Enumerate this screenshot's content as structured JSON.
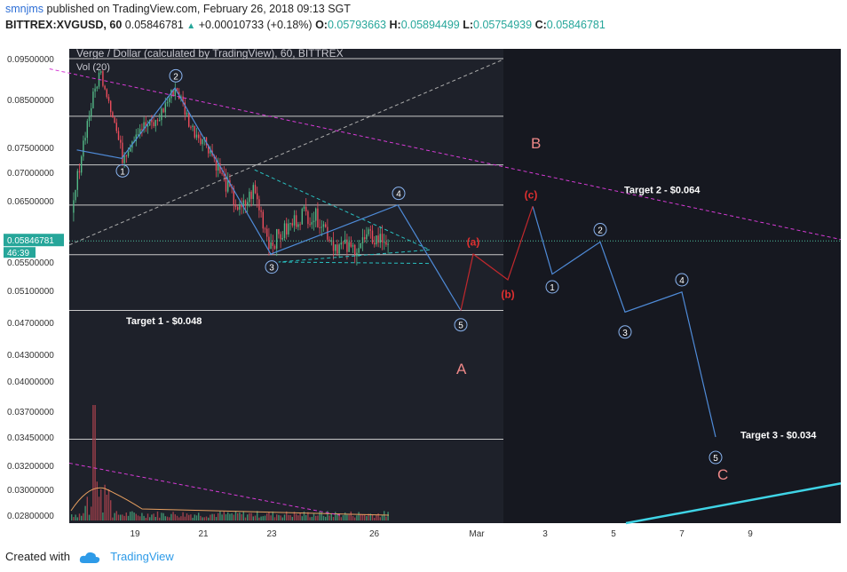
{
  "header": {
    "line1_user": "smnjms",
    "line1_rest": "published on TradingView.com, February 26, 2018 09:13 SGT",
    "symbol": "BITTREX:XVGUSD, 60",
    "last": "0.05846781",
    "change": "+0.00010733 (+0.18%)",
    "o_label": "O:",
    "o_val": "0.05793663",
    "h_label": "H:",
    "h_val": "0.05894499",
    "l_label": "L:",
    "l_val": "0.05754939",
    "c_label": "C:",
    "c_val": "0.05846781"
  },
  "footer": {
    "created_with": "Created with",
    "brand": "TradingView"
  },
  "chart_data": {
    "type": "candlestick",
    "title": "Verge / Dollar (calculated by TradingView), 60, BITTREX",
    "volume_label": "Vol (20)",
    "x_ticks": [
      "19",
      "21",
      "23",
      "26",
      "Mar",
      "3",
      "5",
      "7",
      "9"
    ],
    "y_ticks": [
      "0.09500000",
      "0.08500000",
      "0.07500000",
      "0.07000000",
      "0.06500000",
      "0.05500000",
      "0.05100000",
      "0.04700000",
      "0.04300000",
      "0.04000000",
      "0.03700000",
      "0.03450000",
      "0.03200000",
      "0.03000000",
      "0.02800000"
    ],
    "y_tick_values": [
      0.095,
      0.085,
      0.075,
      0.07,
      0.065,
      0.055,
      0.051,
      0.047,
      0.043,
      0.04,
      0.037,
      0.0345,
      0.032,
      0.03,
      0.028
    ],
    "last_price_label": "0.05846781",
    "countdown_label": "46:39",
    "horizontal_levels": [
      0.095,
      0.0815,
      0.0715,
      0.0643,
      0.0562,
      0.0485,
      0.0343
    ],
    "annotations": [
      {
        "text": "Target 1 - $0.048",
        "color": "#ffffff"
      },
      {
        "text": "Target 2 - $0.064",
        "color": "#ffffff"
      },
      {
        "text": "Target 3 - $0.034",
        "color": "#ffffff"
      },
      {
        "text": "A",
        "color": "#ee8888"
      },
      {
        "text": "B",
        "color": "#ee8888"
      },
      {
        "text": "C",
        "color": "#ee8888"
      }
    ],
    "wave_labels_blue": [
      "1",
      "2",
      "3",
      "4",
      "5"
    ],
    "wave_labels_red": [
      "(a)",
      "(b)",
      "(c)"
    ],
    "colors": {
      "background": "#1e212a",
      "future_background": "#161820",
      "up": "#53b987",
      "down": "#eb4d5c",
      "wave": "#4f8bd8",
      "corrective": "#c0282d",
      "trendline": "#d63bd6",
      "triangle": "#29c0c0",
      "support": "#3fd4e6",
      "level": "#c8c8c8"
    }
  }
}
